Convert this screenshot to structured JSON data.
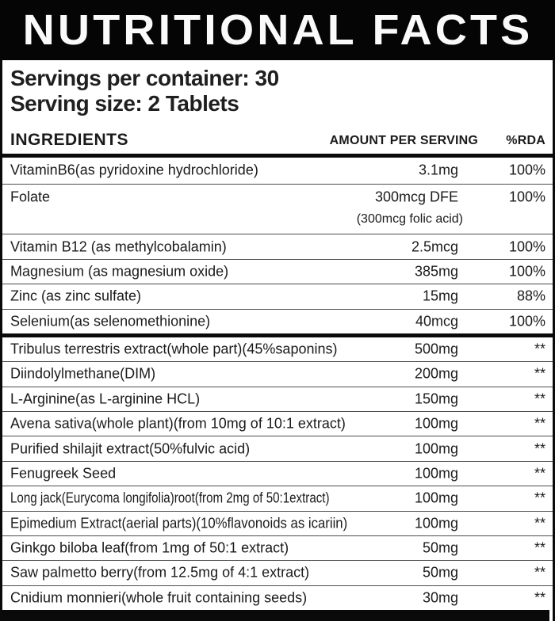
{
  "header": {
    "title": "NUTRITIONAL FACTS"
  },
  "serving_info": {
    "servings_per_container": "Servings per container: 30",
    "serving_size": "Serving size: 2 Tablets"
  },
  "table": {
    "columns": [
      "INGREDIENTS",
      "AMOUNT PER SERVING",
      "%RDA"
    ],
    "rows": [
      {
        "name": "VitaminB6(as pyridoxine hydrochloride)",
        "amount": "3.1mg",
        "rda": "100%"
      },
      {
        "name": "Folate",
        "amount": "300mcg DFE",
        "amount_note": "(300mcg folic acid)",
        "rda": "100%"
      },
      {
        "name": "Vitamin B12 (as methylcobalamin)",
        "amount": "2.5mcg",
        "rda": "100%"
      },
      {
        "name": "Magnesium (as magnesium oxide)",
        "amount": "385mg",
        "rda": "100%"
      },
      {
        "name": "Zinc (as zinc sulfate)",
        "amount": "15mg",
        "rda": "88%"
      },
      {
        "name": "Selenium(as selenomethionine)",
        "amount": "40mcg",
        "rda": "100%",
        "divider_after": true
      },
      {
        "name": "Tribulus terrestris extract(whole part)(45%saponins)",
        "amount": "500mg",
        "rda": "**"
      },
      {
        "name": "Diindolylmethane(DIM)",
        "amount": "200mg",
        "rda": "**"
      },
      {
        "name": "L-Arginine(as L-arginine HCL)",
        "amount": "150mg",
        "rda": "**"
      },
      {
        "name": "Avena sativa(whole plant)(from 10mg of 10:1 extract)",
        "amount": "100mg",
        "rda": "**"
      },
      {
        "name": "Purified shilajit extract(50%fulvic acid)",
        "amount": "100mg",
        "rda": "**"
      },
      {
        "name": "Fenugreek Seed",
        "amount": "100mg",
        "rda": "**"
      },
      {
        "name": "Long jack(Eurycoma longifolia)root(from 2mg of 50:1extract)",
        "amount": "100mg",
        "rda": "**"
      },
      {
        "name": "Epimedium Extract(aerial parts)(10%flavonoids as icariin)",
        "amount": "100mg",
        "rda": "**"
      },
      {
        "name": "Ginkgo biloba leaf(from 1mg of 50:1 extract)",
        "amount": "50mg",
        "rda": "**"
      },
      {
        "name": "Saw palmetto berry(from 12.5mg of 4:1 extract)",
        "amount": "50mg",
        "rda": "**"
      },
      {
        "name": "Cnidium monnieri(whole fruit containing seeds)",
        "amount": "30mg",
        "rda": "**"
      }
    ]
  },
  "colors": {
    "bar": "#000000",
    "text": "#1b1b1b",
    "separator": "#555555",
    "background": "#ffffff",
    "title_text": "#fafafa"
  }
}
